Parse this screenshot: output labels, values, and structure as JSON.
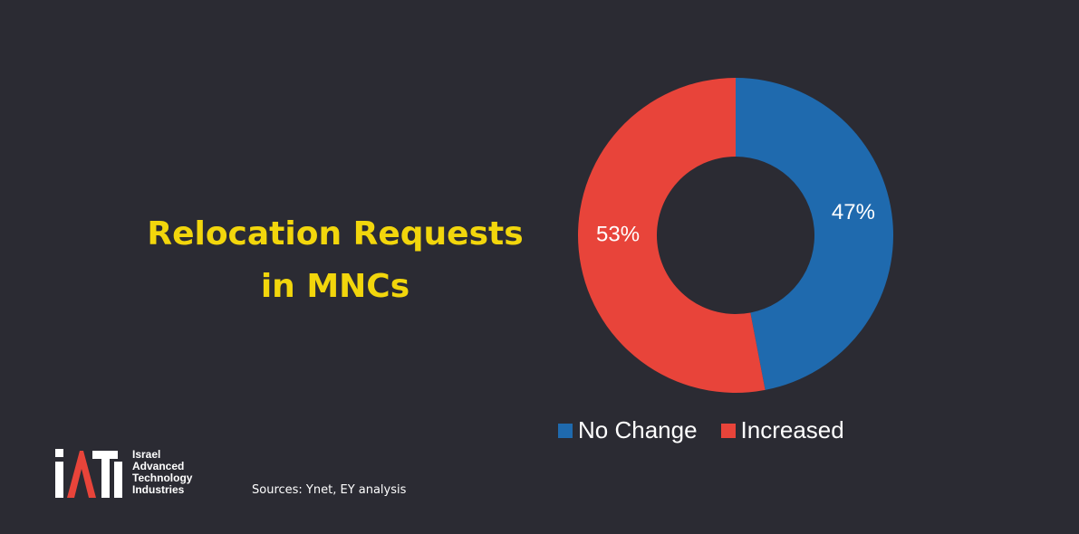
{
  "title": {
    "line1": "Relocation Requests",
    "line2": "in MNCs"
  },
  "chart_data": {
    "type": "pie",
    "style": "donut",
    "categories": [
      "No Change",
      "Increased"
    ],
    "values": [
      47,
      53
    ],
    "data_labels": [
      "47%",
      "53%"
    ],
    "colors": [
      "#1f6aae",
      "#e8443a"
    ],
    "legend_position": "bottom"
  },
  "source": "Sources: Ynet, EY analysis",
  "logo": {
    "lines": [
      "Israel",
      "Advanced",
      "Technology",
      "Industries"
    ]
  },
  "colors": {
    "background": "#2b2b33",
    "title": "#f2d60c",
    "text": "#ffffff"
  }
}
